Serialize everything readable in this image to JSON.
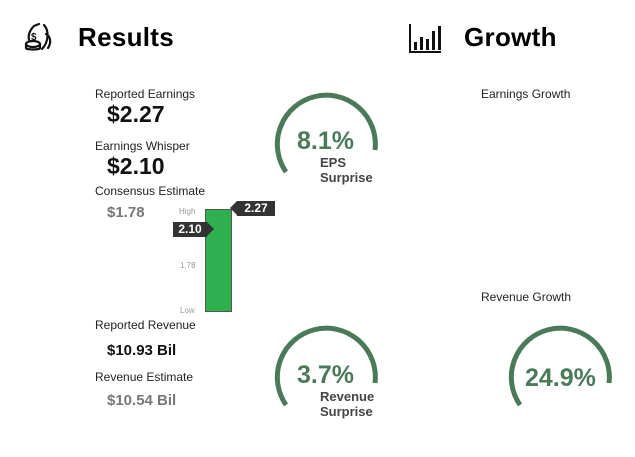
{
  "results": {
    "title": "Results",
    "icon": "money-bag-icon",
    "reported_earnings": {
      "label": "Reported Earnings",
      "value": "$2.27"
    },
    "earnings_whisper": {
      "label": "Earnings Whisper",
      "value": "$2.10"
    },
    "consensus_estimate": {
      "label": "Consensus Estimate",
      "value": "$1.78"
    },
    "reported_revenue": {
      "label": "Reported Revenue",
      "value": "$10.93 Bil"
    },
    "revenue_estimate": {
      "label": "Revenue Estimate",
      "value": "$10.54 Bil"
    }
  },
  "bar": {
    "high_label": "High",
    "mid_label": "1.78",
    "low_label": "Low",
    "reported_tag": "2.27",
    "whisper_tag": "2.10",
    "bar_color": "#2fb04f"
  },
  "eps_surprise": {
    "percent": "8.1%",
    "label_line1": "EPS",
    "label_line2": "Surprise",
    "arc_fraction": 0.6
  },
  "revenue_surprise": {
    "percent": "3.7%",
    "label_line1": "Revenue",
    "label_line2": "Surprise",
    "arc_fraction": 0.6
  },
  "growth": {
    "title": "Growth",
    "icon": "bar-chart-icon",
    "earnings_growth_label": "Earnings Growth",
    "revenue_growth_label": "Revenue Growth",
    "revenue_growth_value": "24.9%",
    "arc_fraction": 0.6
  },
  "colors": {
    "accent": "#4a7a5a",
    "dark": "#333333"
  }
}
